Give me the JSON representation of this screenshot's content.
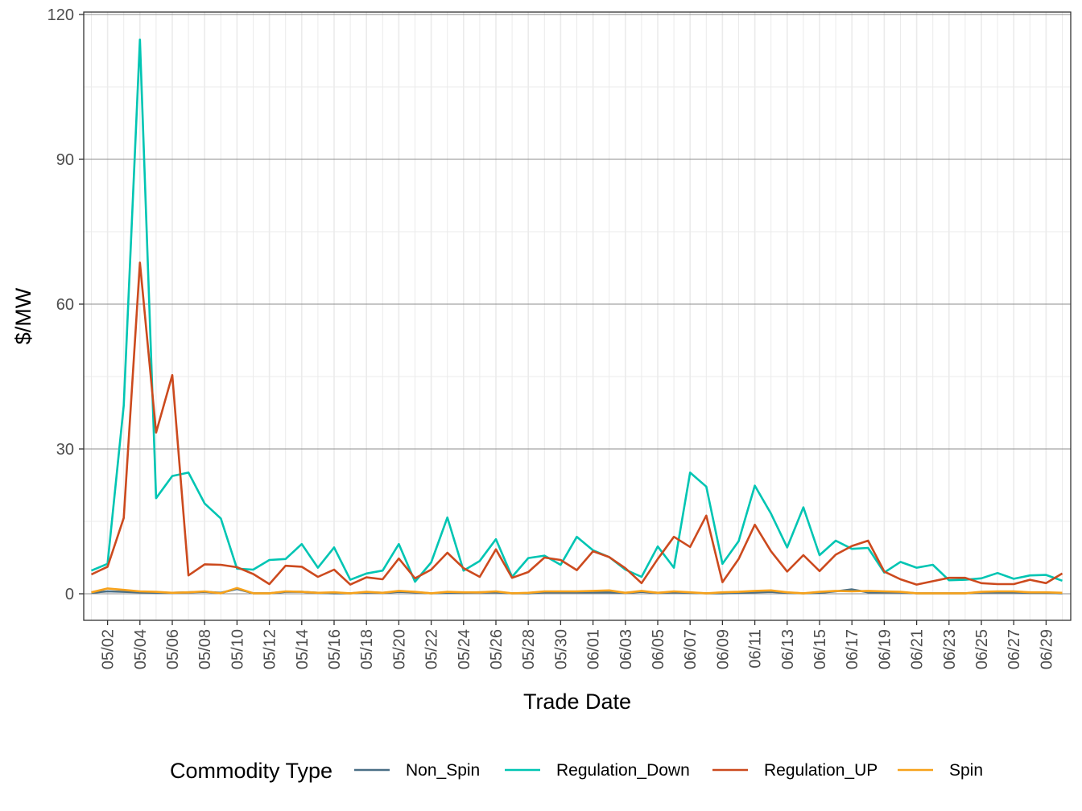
{
  "chart_data": {
    "type": "line",
    "title": "",
    "xlabel": "Trade Date",
    "ylabel": "$/MW",
    "ylim": [
      -5.5,
      120.5
    ],
    "y_ticks": [
      0,
      30,
      60,
      90,
      120
    ],
    "x_tick_labels": [
      "05/02",
      "05/04",
      "05/06",
      "05/08",
      "05/10",
      "05/12",
      "05/14",
      "05/16",
      "05/18",
      "05/20",
      "05/22",
      "05/24",
      "05/26",
      "05/28",
      "05/30",
      "06/01",
      "06/03",
      "06/05",
      "06/07",
      "06/09",
      "06/11",
      "06/13",
      "06/15",
      "06/17",
      "06/19",
      "06/21",
      "06/23",
      "06/25",
      "06/27",
      "06/29"
    ],
    "legend_title": "Commodity Type",
    "legend_position": "bottom",
    "grid": true,
    "x": [
      "05/01",
      "05/02",
      "05/03",
      "05/04",
      "05/05",
      "05/06",
      "05/07",
      "05/08",
      "05/09",
      "05/10",
      "05/11",
      "05/12",
      "05/13",
      "05/14",
      "05/15",
      "05/16",
      "05/17",
      "05/18",
      "05/19",
      "05/20",
      "05/21",
      "05/22",
      "05/23",
      "05/24",
      "05/25",
      "05/26",
      "05/27",
      "05/28",
      "05/29",
      "05/30",
      "05/31",
      "06/01",
      "06/02",
      "06/03",
      "06/04",
      "06/05",
      "06/06",
      "06/07",
      "06/08",
      "06/09",
      "06/10",
      "06/11",
      "06/12",
      "06/13",
      "06/14",
      "06/15",
      "06/16",
      "06/17",
      "06/18",
      "06/19",
      "06/20",
      "06/21",
      "06/22",
      "06/23",
      "06/24",
      "06/25",
      "06/26",
      "06/27",
      "06/28",
      "06/29",
      "06/30"
    ],
    "series": [
      {
        "name": "Non_Spin",
        "color": "#4a6f86",
        "values": [
          0.2,
          0.5,
          0.4,
          0.3,
          0.2,
          0.2,
          0.3,
          0.4,
          0.2,
          1.0,
          0.1,
          0.1,
          0.4,
          0.4,
          0.2,
          0.1,
          0.1,
          0.3,
          0.2,
          0.4,
          0.3,
          0.1,
          0.2,
          0.2,
          0.3,
          0.3,
          0.1,
          0.1,
          0.3,
          0.3,
          0.3,
          0.3,
          0.3,
          0.2,
          0.4,
          0.2,
          0.3,
          0.2,
          0.1,
          0.1,
          0.2,
          0.3,
          0.4,
          0.2,
          0.1,
          0.2,
          0.5,
          0.9,
          0.3,
          0.3,
          0.3,
          0.1,
          0.1,
          0.1,
          0.1,
          0.3,
          0.3,
          0.3,
          0.2,
          0.2,
          0.1
        ]
      },
      {
        "name": "Regulation_Down",
        "color": "#00c5b3",
        "values": [
          4.8,
          6.2,
          39.0,
          114.8,
          19.8,
          24.4,
          25.1,
          18.7,
          15.6,
          5.2,
          5.0,
          7.0,
          7.2,
          10.3,
          5.4,
          9.6,
          2.9,
          4.2,
          4.8,
          10.3,
          2.5,
          6.5,
          15.8,
          4.8,
          6.8,
          11.3,
          3.5,
          7.4,
          7.9,
          6.0,
          11.8,
          9.0,
          7.6,
          5.0,
          3.5,
          9.8,
          5.4,
          25.1,
          22.2,
          6.2,
          10.9,
          22.4,
          16.6,
          9.6,
          17.9,
          8.0,
          11.0,
          9.3,
          9.5,
          4.4,
          6.6,
          5.4,
          6.0,
          2.8,
          2.9,
          3.2,
          4.3,
          3.1,
          3.8,
          3.9,
          2.7
        ]
      },
      {
        "name": "Regulation_UP",
        "color": "#cc4a1e",
        "values": [
          4.0,
          5.6,
          15.7,
          68.6,
          33.4,
          45.3,
          3.8,
          6.1,
          6.0,
          5.5,
          4.1,
          2.0,
          5.8,
          5.6,
          3.5,
          5.0,
          1.9,
          3.4,
          3.0,
          7.3,
          3.2,
          5.0,
          8.5,
          5.3,
          3.5,
          9.2,
          3.3,
          4.5,
          7.5,
          7.0,
          4.9,
          8.8,
          7.6,
          5.3,
          2.2,
          7.2,
          11.8,
          9.7,
          16.2,
          2.4,
          7.2,
          14.3,
          8.8,
          4.6,
          8.0,
          4.7,
          8.1,
          9.9,
          11.0,
          4.6,
          3.0,
          1.9,
          2.6,
          3.3,
          3.3,
          2.2,
          2.0,
          2.0,
          2.9,
          2.2,
          4.2
        ]
      },
      {
        "name": "Spin",
        "color": "#f7a21b",
        "values": [
          0.3,
          1.1,
          0.8,
          0.5,
          0.4,
          0.2,
          0.3,
          0.5,
          0.1,
          1.2,
          0.1,
          0.1,
          0.5,
          0.4,
          0.2,
          0.3,
          0.1,
          0.4,
          0.2,
          0.6,
          0.4,
          0.1,
          0.4,
          0.3,
          0.3,
          0.5,
          0.1,
          0.2,
          0.5,
          0.5,
          0.5,
          0.6,
          0.7,
          0.2,
          0.6,
          0.2,
          0.5,
          0.3,
          0.1,
          0.3,
          0.4,
          0.6,
          0.7,
          0.3,
          0.1,
          0.4,
          0.6,
          0.5,
          0.6,
          0.5,
          0.4,
          0.1,
          0.1,
          0.1,
          0.1,
          0.4,
          0.5,
          0.5,
          0.3,
          0.3,
          0.2
        ]
      }
    ]
  }
}
